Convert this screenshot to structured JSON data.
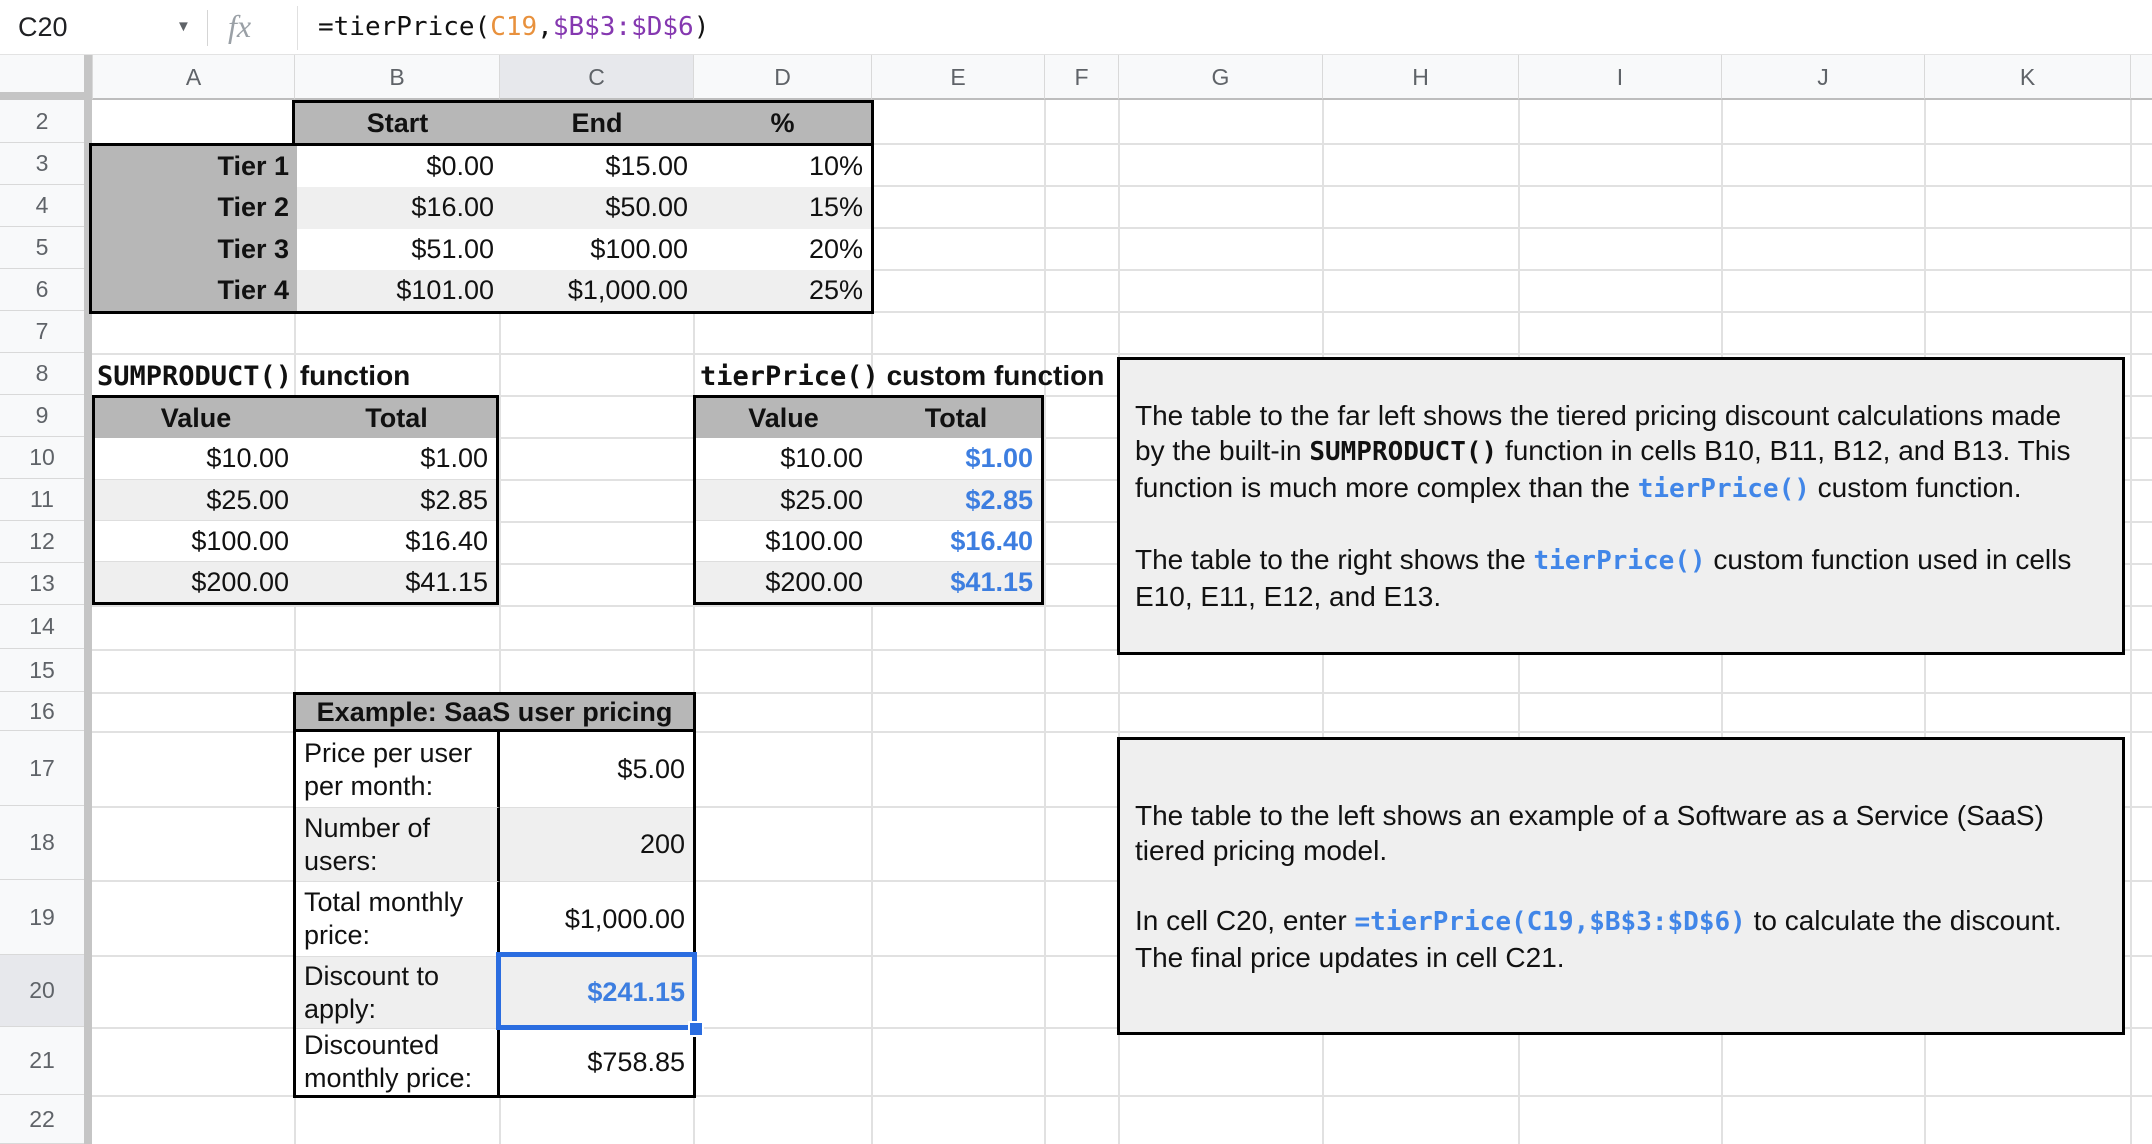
{
  "formula_bar": {
    "cell_ref": "C20",
    "fx_label": "fx",
    "formula_segments": [
      {
        "text": "=tierPrice(",
        "color": "default"
      },
      {
        "text": "C19",
        "color": "orange"
      },
      {
        "text": ",",
        "color": "default"
      },
      {
        "text": "$B$3:$D$6",
        "color": "purple"
      },
      {
        "text": ")",
        "color": "default"
      }
    ]
  },
  "grid": {
    "columns": [
      "A",
      "B",
      "C",
      "D",
      "E",
      "F",
      "G",
      "H",
      "I",
      "J",
      "K"
    ],
    "rows": [
      "2",
      "3",
      "4",
      "5",
      "6",
      "7",
      "8",
      "9",
      "10",
      "11",
      "12",
      "13",
      "14",
      "15",
      "16",
      "17",
      "18",
      "19",
      "20",
      "21",
      "22"
    ],
    "selected_column": "C",
    "selected_row": "20",
    "selected_cell": "C20"
  },
  "tier_table": {
    "headers": [
      "Start",
      "End",
      "%"
    ],
    "rows": [
      [
        "Tier 1",
        "$0.00",
        "$15.00",
        "10%"
      ],
      [
        "Tier 2",
        "$16.00",
        "$50.00",
        "15%"
      ],
      [
        "Tier 3",
        "$51.00",
        "$100.00",
        "20%"
      ],
      [
        "Tier 4",
        "$101.00",
        "$1,000.00",
        "25%"
      ]
    ]
  },
  "sumproduct_table": {
    "title_code": "SUMPRODUCT()",
    "title_rest": " function",
    "headers": [
      "Value",
      "Total"
    ],
    "rows": [
      [
        "$10.00",
        "$1.00"
      ],
      [
        "$25.00",
        "$2.85"
      ],
      [
        "$100.00",
        "$16.40"
      ],
      [
        "$200.00",
        "$41.15"
      ]
    ]
  },
  "tierprice_table": {
    "title_code": "tierPrice()",
    "title_rest": " custom function",
    "headers": [
      "Value",
      "Total"
    ],
    "rows": [
      [
        "$10.00",
        "$1.00"
      ],
      [
        "$25.00",
        "$2.85"
      ],
      [
        "$100.00",
        "$16.40"
      ],
      [
        "$200.00",
        "$41.15"
      ]
    ]
  },
  "example_table": {
    "title": "Example: SaaS user pricing",
    "rows": [
      {
        "label": "Price per user per month:",
        "value": "$5.00"
      },
      {
        "label": "Number of users:",
        "value": "200"
      },
      {
        "label": "Total monthly price:",
        "value": "$1,000.00"
      },
      {
        "label": "Discount to apply:",
        "value": "$241.15"
      },
      {
        "label": "Discounted monthly price:",
        "value": "$758.85"
      }
    ]
  },
  "notes": [
    {
      "paragraphs": [
        [
          {
            "t": "The table to the far left shows the tiered pricing discount calculations made by the built-in ",
            "s": "plain"
          },
          {
            "t": "SUMPRODUCT()",
            "s": "code"
          },
          {
            "t": " function in cells B10, B11, B12, and B13. This function is much more complex than the ",
            "s": "plain"
          },
          {
            "t": "tierPrice()",
            "s": "code-blue"
          },
          {
            "t": " custom function.",
            "s": "plain"
          }
        ],
        [
          {
            "t": "The table to the right shows the ",
            "s": "plain"
          },
          {
            "t": "tierPrice()",
            "s": "code-blue"
          },
          {
            "t": " custom function used in cells E10, E11, E12, and E13.",
            "s": "plain"
          }
        ]
      ]
    },
    {
      "paragraphs": [
        [
          {
            "t": "The table to the left shows an example of a Software as a Service (SaaS) tiered pricing model.",
            "s": "plain"
          }
        ],
        [
          {
            "t": "In cell C20, enter ",
            "s": "plain"
          },
          {
            "t": "=tierPrice(C19,$B$3:$D$6)",
            "s": "code-blue"
          },
          {
            "t": " to calculate the discount. The final price updates in cell C21.",
            "s": "plain"
          }
        ]
      ]
    }
  ],
  "colors": {
    "value_blue": "#3d7ee0",
    "code_blue": "#4186e8",
    "formula_ref_orange": "#e8913d",
    "formula_range_purple": "#8538b0",
    "selection_blue": "#2b6de0",
    "table_header_gray": "#b7b7b7",
    "alt_row_gray": "#efefef",
    "note_bg": "#efefef",
    "chrome_header_bg": "#f8f9fa",
    "chrome_header_text": "#5f6368",
    "table_border": "#000000"
  }
}
